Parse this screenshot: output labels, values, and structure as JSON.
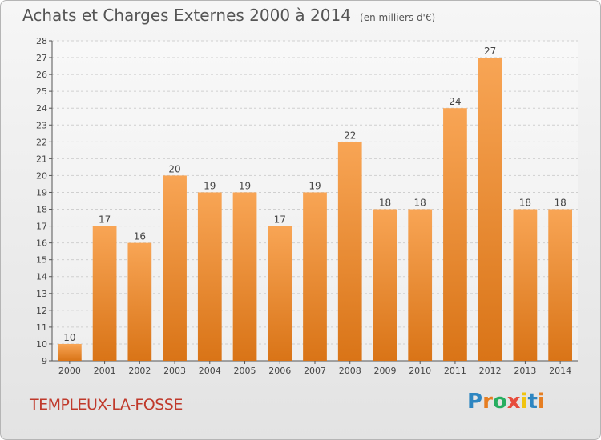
{
  "header": {
    "title": "Achats et Charges Externes 2000 à 2014",
    "subtitle": "(en milliers d'€)"
  },
  "commune_name": "TEMPLEUX-LA-FOSSE",
  "logo": {
    "letters": [
      "P",
      "r",
      "o",
      "x",
      "i",
      "t",
      "i"
    ],
    "colors": [
      "#2e86c1",
      "#e67e22",
      "#27ae60",
      "#e74c3c",
      "#f1c40f",
      "#2e86c1",
      "#e67e22"
    ]
  },
  "colors": {
    "bar_light": "#f8a555",
    "bar_dark": "#d97417",
    "grid": "#cfcfcf",
    "axis": "#555555",
    "commune_text": "#c0392b"
  },
  "chart_data": {
    "type": "bar",
    "categories": [
      "2000",
      "2001",
      "2002",
      "2003",
      "2004",
      "2005",
      "2006",
      "2007",
      "2008",
      "2009",
      "2010",
      "2011",
      "2012",
      "2013",
      "2014"
    ],
    "values": [
      10,
      17,
      16,
      20,
      19,
      19,
      17,
      19,
      22,
      18,
      18,
      24,
      27,
      18,
      18
    ],
    "ylim": [
      9,
      28
    ],
    "yticks": [
      9,
      10,
      11,
      12,
      13,
      14,
      15,
      16,
      17,
      18,
      19,
      20,
      21,
      22,
      23,
      24,
      25,
      26,
      27,
      28
    ],
    "grid": true,
    "data_labels": true
  }
}
